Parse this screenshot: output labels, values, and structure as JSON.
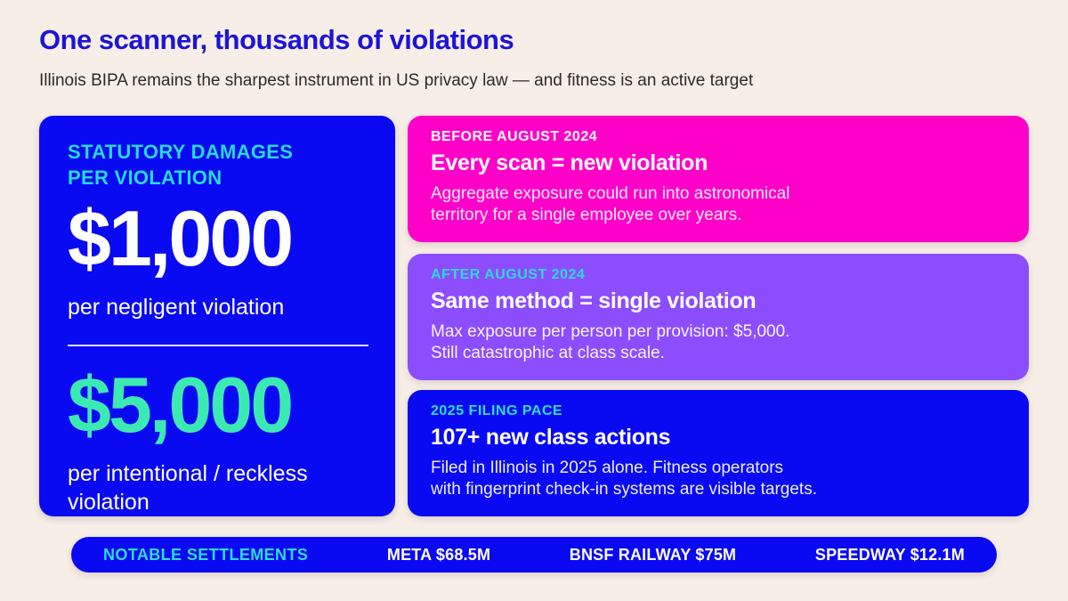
{
  "header": {
    "title": "One scanner, thousands of violations",
    "subtitle": "Illinois BIPA remains the sharpest instrument in US privacy law — and fitness is an active target"
  },
  "damages_card": {
    "label_line1": "STATUTORY DAMAGES",
    "label_line2": "PER VIOLATION",
    "negligent": {
      "amount": "$1,000",
      "description": "per negligent violation"
    },
    "intentional": {
      "amount": "$5,000",
      "description": "per intentional / reckless violation"
    }
  },
  "timeline_cards": [
    {
      "tag": "BEFORE AUGUST 2024",
      "headline": "Every scan = new violation",
      "body_line1": "Aggregate exposure could run into astronomical",
      "body_line2": "territory for a single employee over years."
    },
    {
      "tag": "AFTER AUGUST 2024",
      "headline": "Same method = single violation",
      "body_line1": "Max exposure per person per provision: $5,000.",
      "body_line2": "Still catastrophic at class scale."
    },
    {
      "tag": "2025 FILING PACE",
      "headline": "107+ new class actions",
      "body_line1": "Filed in Illinois in 2025 alone. Fitness operators",
      "body_line2": "with fingerprint check-in systems are visible targets."
    }
  ],
  "settlements": {
    "label": "NOTABLE SETTLEMENTS",
    "items": [
      "META $68.5M",
      "BNSF RAILWAY $75M",
      "SPEEDWAY $12.1M"
    ]
  },
  "colors": {
    "background": "#f7eee8",
    "title_blue": "#1d14d6",
    "card_blue": "#0a0af2",
    "magenta": "#ff00c8",
    "purple": "#8c4dff",
    "cyan": "#27d9df",
    "mint": "#3de9b2",
    "white": "#ffffff"
  }
}
